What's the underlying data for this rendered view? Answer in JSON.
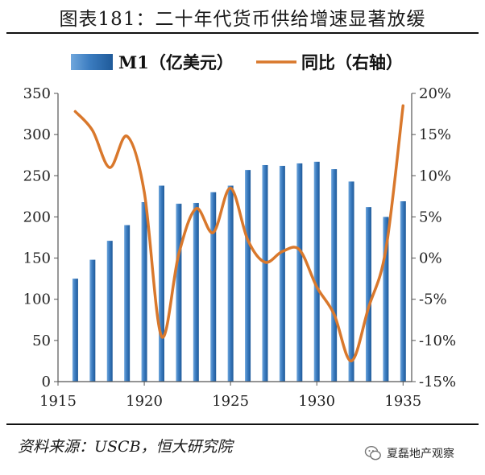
{
  "title": "图表181：二十年代货币供给增速显著放缓",
  "source": "资料来源：USCB，恒大研究院",
  "watermark": "夏磊地产观察",
  "chart_data": {
    "type": "bar+line",
    "x": [
      1916,
      1917,
      1918,
      1919,
      1920,
      1921,
      1922,
      1923,
      1924,
      1925,
      1926,
      1927,
      1928,
      1929,
      1930,
      1931,
      1932,
      1933,
      1934,
      1935
    ],
    "series": [
      {
        "name": "M1（亿美元）",
        "type": "bar",
        "axis": "left",
        "color": "#3d7fbf",
        "values": [
          125,
          148,
          171,
          190,
          218,
          238,
          216,
          217,
          230,
          238,
          257,
          263,
          262,
          265,
          267,
          258,
          243,
          212,
          200,
          219
        ]
      },
      {
        "name": "同比（右轴）",
        "type": "line",
        "axis": "right",
        "color": "#d9782c",
        "x": [
          1916,
          1917,
          1918,
          1919,
          1920,
          1921,
          1922,
          1923,
          1924,
          1925,
          1926,
          1927,
          1928,
          1929,
          1930,
          1931,
          1932,
          1933,
          1934,
          1935
        ],
        "values": [
          17.8,
          15.5,
          11.0,
          14.8,
          8.0,
          -9.5,
          0.5,
          6.0,
          3.1,
          8.5,
          2.2,
          -0.5,
          0.8,
          1.0,
          -3.5,
          -6.8,
          -12.5,
          -6.0,
          1.0,
          18.5
        ]
      }
    ],
    "x_ticks": [
      "1915",
      "1920",
      "1925",
      "1930",
      "1935"
    ],
    "xlim": [
      1915,
      1935.5
    ],
    "y_left": {
      "ticks": [
        "0",
        "50",
        "100",
        "150",
        "200",
        "250",
        "300",
        "350"
      ],
      "ylim": [
        0,
        350
      ]
    },
    "y_right": {
      "ticks": [
        "-15%",
        "-10%",
        "-5%",
        "0%",
        "5%",
        "10%",
        "15%",
        "20%"
      ],
      "ylim": [
        -15,
        20
      ]
    },
    "legend_position": "top-center"
  }
}
